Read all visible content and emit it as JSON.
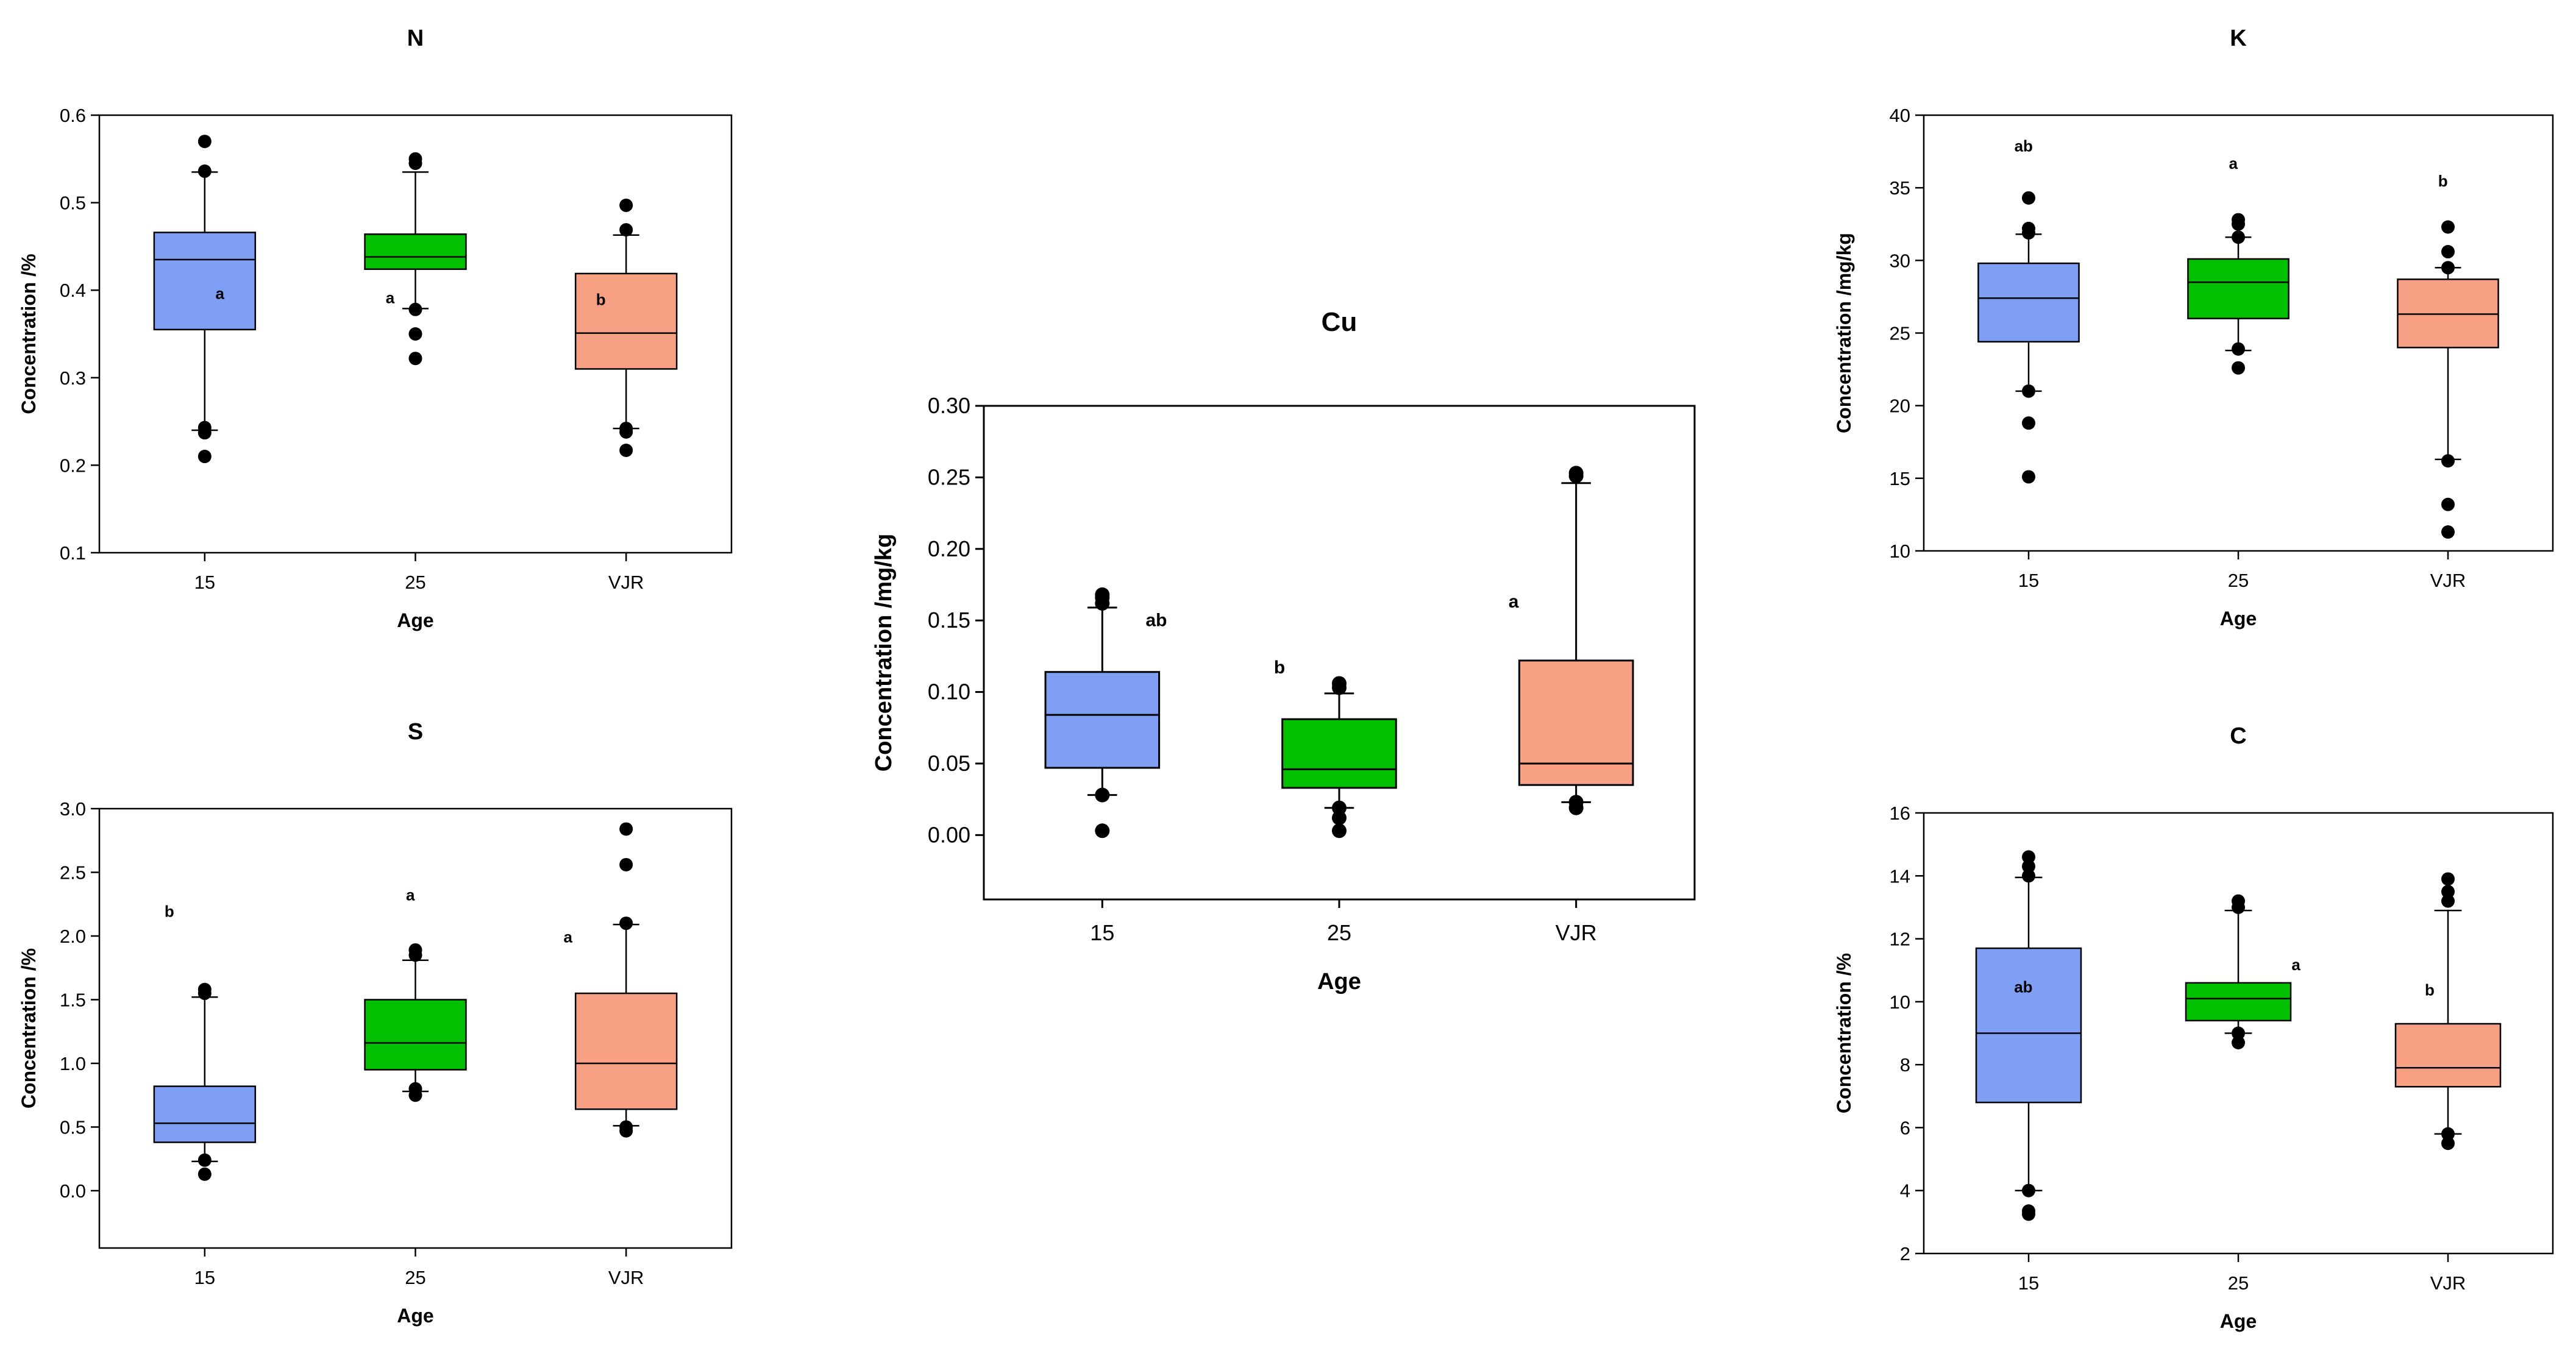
{
  "colors": {
    "g15": "#7f9ff5",
    "g25": "#00c000",
    "gVJR": "#f7a084"
  },
  "chart_data": [
    {
      "type": "box",
      "title": "N",
      "xlabel": "Age",
      "ylabel": "Concentration /%",
      "categories": [
        "15",
        "25",
        "VJR"
      ],
      "ylim": [
        0.1,
        0.6
      ],
      "yticks": [
        "0.1",
        "0.2",
        "0.3",
        "0.4",
        "0.5",
        "0.6"
      ],
      "boxes": [
        {
          "q1": 0.355,
          "median": 0.435,
          "q3": 0.466,
          "whisker_low": 0.24,
          "whisker_high": 0.535,
          "outliers": [
            0.57,
            0.536,
            0.243,
            0.237,
            0.21
          ],
          "letter": "a",
          "letter_y": 0.39
        },
        {
          "q1": 0.424,
          "median": 0.438,
          "q3": 0.464,
          "whisker_low": 0.379,
          "whisker_high": 0.535,
          "outliers": [
            0.55,
            0.545,
            0.378,
            0.35,
            0.322
          ],
          "letter": "a",
          "letter_y": 0.385
        },
        {
          "q1": 0.31,
          "median": 0.351,
          "q3": 0.419,
          "whisker_low": 0.242,
          "whisker_high": 0.463,
          "outliers": [
            0.497,
            0.469,
            0.242,
            0.238,
            0.217
          ],
          "letter": "b",
          "letter_y": 0.383
        }
      ]
    },
    {
      "type": "box",
      "title": "S",
      "xlabel": "Age",
      "ylabel": "Concentration /%",
      "categories": [
        "15",
        "25",
        "VJR"
      ],
      "ylim": [
        -0.45,
        3.0
      ],
      "yticks": [
        "0.0",
        "0.5",
        "1.0",
        "1.5",
        "2.0",
        "2.5",
        "3.0"
      ],
      "boxes": [
        {
          "q1": 0.38,
          "median": 0.53,
          "q3": 0.82,
          "whisker_low": 0.23,
          "whisker_high": 1.52,
          "outliers": [
            1.58,
            1.55,
            0.24,
            0.13
          ],
          "letter": "b",
          "letter_y": 2.15
        },
        {
          "q1": 0.95,
          "median": 1.16,
          "q3": 1.5,
          "whisker_low": 0.78,
          "whisker_high": 1.81,
          "outliers": [
            1.89,
            1.85,
            0.8,
            0.75
          ],
          "letter": "a",
          "letter_y": 2.28
        },
        {
          "q1": 0.64,
          "median": 1.0,
          "q3": 1.55,
          "whisker_low": 0.51,
          "whisker_high": 2.09,
          "outliers": [
            2.84,
            2.56,
            2.1,
            0.5,
            0.47
          ],
          "letter": "a",
          "letter_y": 1.95
        }
      ]
    },
    {
      "type": "box",
      "title": "Cu",
      "xlabel": "Age",
      "ylabel": "Concentration /mg/kg",
      "categories": [
        "15",
        "25",
        "VJR"
      ],
      "ylim": [
        -0.045,
        0.3
      ],
      "yticks": [
        "0.00",
        "0.05",
        "0.10",
        "0.15",
        "0.20",
        "0.25",
        "0.30"
      ],
      "boxes": [
        {
          "q1": 0.047,
          "median": 0.084,
          "q3": 0.114,
          "whisker_low": 0.028,
          "whisker_high": 0.159,
          "outliers": [
            0.168,
            0.166,
            0.162,
            0.028,
            0.003
          ],
          "letter": "ab",
          "letter_y": 0.146
        },
        {
          "q1": 0.033,
          "median": 0.046,
          "q3": 0.081,
          "whisker_low": 0.019,
          "whisker_high": 0.099,
          "outliers": [
            0.106,
            0.103,
            0.019,
            0.012,
            0.003
          ],
          "letter": "b",
          "letter_y": 0.113
        },
        {
          "q1": 0.035,
          "median": 0.05,
          "q3": 0.122,
          "whisker_low": 0.023,
          "whisker_high": 0.246,
          "outliers": [
            0.253,
            0.251,
            0.023,
            0.019
          ],
          "letter": "a",
          "letter_y": 0.159
        }
      ]
    },
    {
      "type": "box",
      "title": "K",
      "xlabel": "Age",
      "ylabel": "Concentration /mg/kg",
      "categories": [
        "15",
        "25",
        "VJR"
      ],
      "ylim": [
        10,
        40
      ],
      "yticks": [
        "10",
        "15",
        "20",
        "25",
        "30",
        "35",
        "40"
      ],
      "boxes": [
        {
          "q1": 24.4,
          "median": 27.4,
          "q3": 29.8,
          "whisker_low": 21.0,
          "whisker_high": 31.8,
          "outliers": [
            34.3,
            32.2,
            31.9,
            21.0,
            18.8,
            15.1
          ],
          "letter": "ab",
          "letter_y": 37.5
        },
        {
          "q1": 26.0,
          "median": 28.5,
          "q3": 30.1,
          "whisker_low": 23.8,
          "whisker_high": 31.6,
          "outliers": [
            32.8,
            32.5,
            31.6,
            23.9,
            22.6
          ],
          "letter": "a",
          "letter_y": 36.3
        },
        {
          "q1": 24.0,
          "median": 26.3,
          "q3": 28.7,
          "whisker_low": 16.3,
          "whisker_high": 29.5,
          "outliers": [
            32.3,
            30.6,
            29.5,
            16.2,
            13.2,
            11.3
          ],
          "letter": "b",
          "letter_y": 35.1
        }
      ]
    },
    {
      "type": "box",
      "title": "C",
      "xlabel": "Age",
      "ylabel": "Concentration /%",
      "categories": [
        "15",
        "25",
        "VJR"
      ],
      "ylim": [
        2,
        16
      ],
      "yticks": [
        "2",
        "4",
        "6",
        "8",
        "10",
        "12",
        "14",
        "16"
      ],
      "boxes": [
        {
          "q1": 6.8,
          "median": 9.0,
          "q3": 11.7,
          "whisker_low": 4.0,
          "whisker_high": 13.95,
          "outliers": [
            14.6,
            14.3,
            14.0,
            4.0,
            3.35,
            3.25
          ],
          "letter": "ab",
          "letter_y": 10.3
        },
        {
          "q1": 9.4,
          "median": 10.1,
          "q3": 10.6,
          "whisker_low": 9.0,
          "whisker_high": 12.9,
          "outliers": [
            13.2,
            13.0,
            9.0,
            8.7
          ],
          "letter": "a",
          "letter_y": 11.0
        },
        {
          "q1": 7.3,
          "median": 7.9,
          "q3": 9.3,
          "whisker_low": 5.8,
          "whisker_high": 12.9,
          "outliers": [
            13.9,
            13.5,
            13.2,
            5.8,
            5.5
          ],
          "letter": "b",
          "letter_y": 10.2
        }
      ]
    }
  ]
}
